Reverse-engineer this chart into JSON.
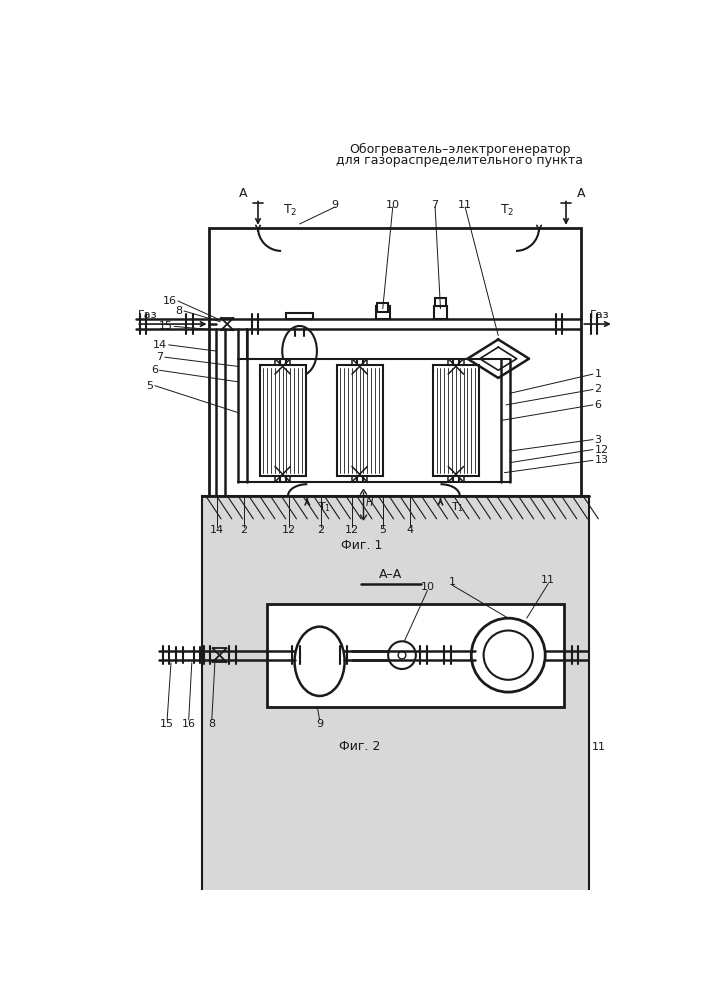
{
  "title_line1": "Обогреватель–электрогенератор",
  "title_line2": "для газораспределительного пункта",
  "fig1_caption": "Фиг. 1",
  "fig2_caption": "Фиг. 2",
  "fig2_section": "А–А",
  "page_number": "11",
  "bg_color": "#ffffff",
  "line_color": "#1a1a1a"
}
